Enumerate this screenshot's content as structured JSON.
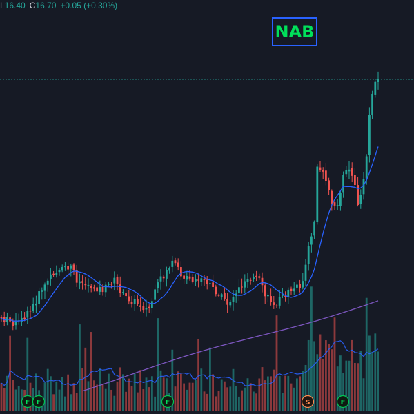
{
  "header": {
    "low_label": "L",
    "low_value": "16.40",
    "close_label": "C",
    "close_value": "16.70",
    "change": "+0.05 (+0.30%)"
  },
  "ticker_badge": "NAB",
  "colors": {
    "up": "#26a69a",
    "down": "#ef5350",
    "ma_fast": "#2962ff",
    "ma_slow": "#7e57c2",
    "badge_border": "#2962ff",
    "badge_text": "#00e05a"
  },
  "event_markers": [
    {
      "label": "F",
      "type": "financials"
    },
    {
      "label": "F",
      "type": "financials"
    },
    {
      "label": "F",
      "type": "financials"
    },
    {
      "label": "S",
      "type": "split"
    },
    {
      "label": "F",
      "type": "financials"
    }
  ]
}
